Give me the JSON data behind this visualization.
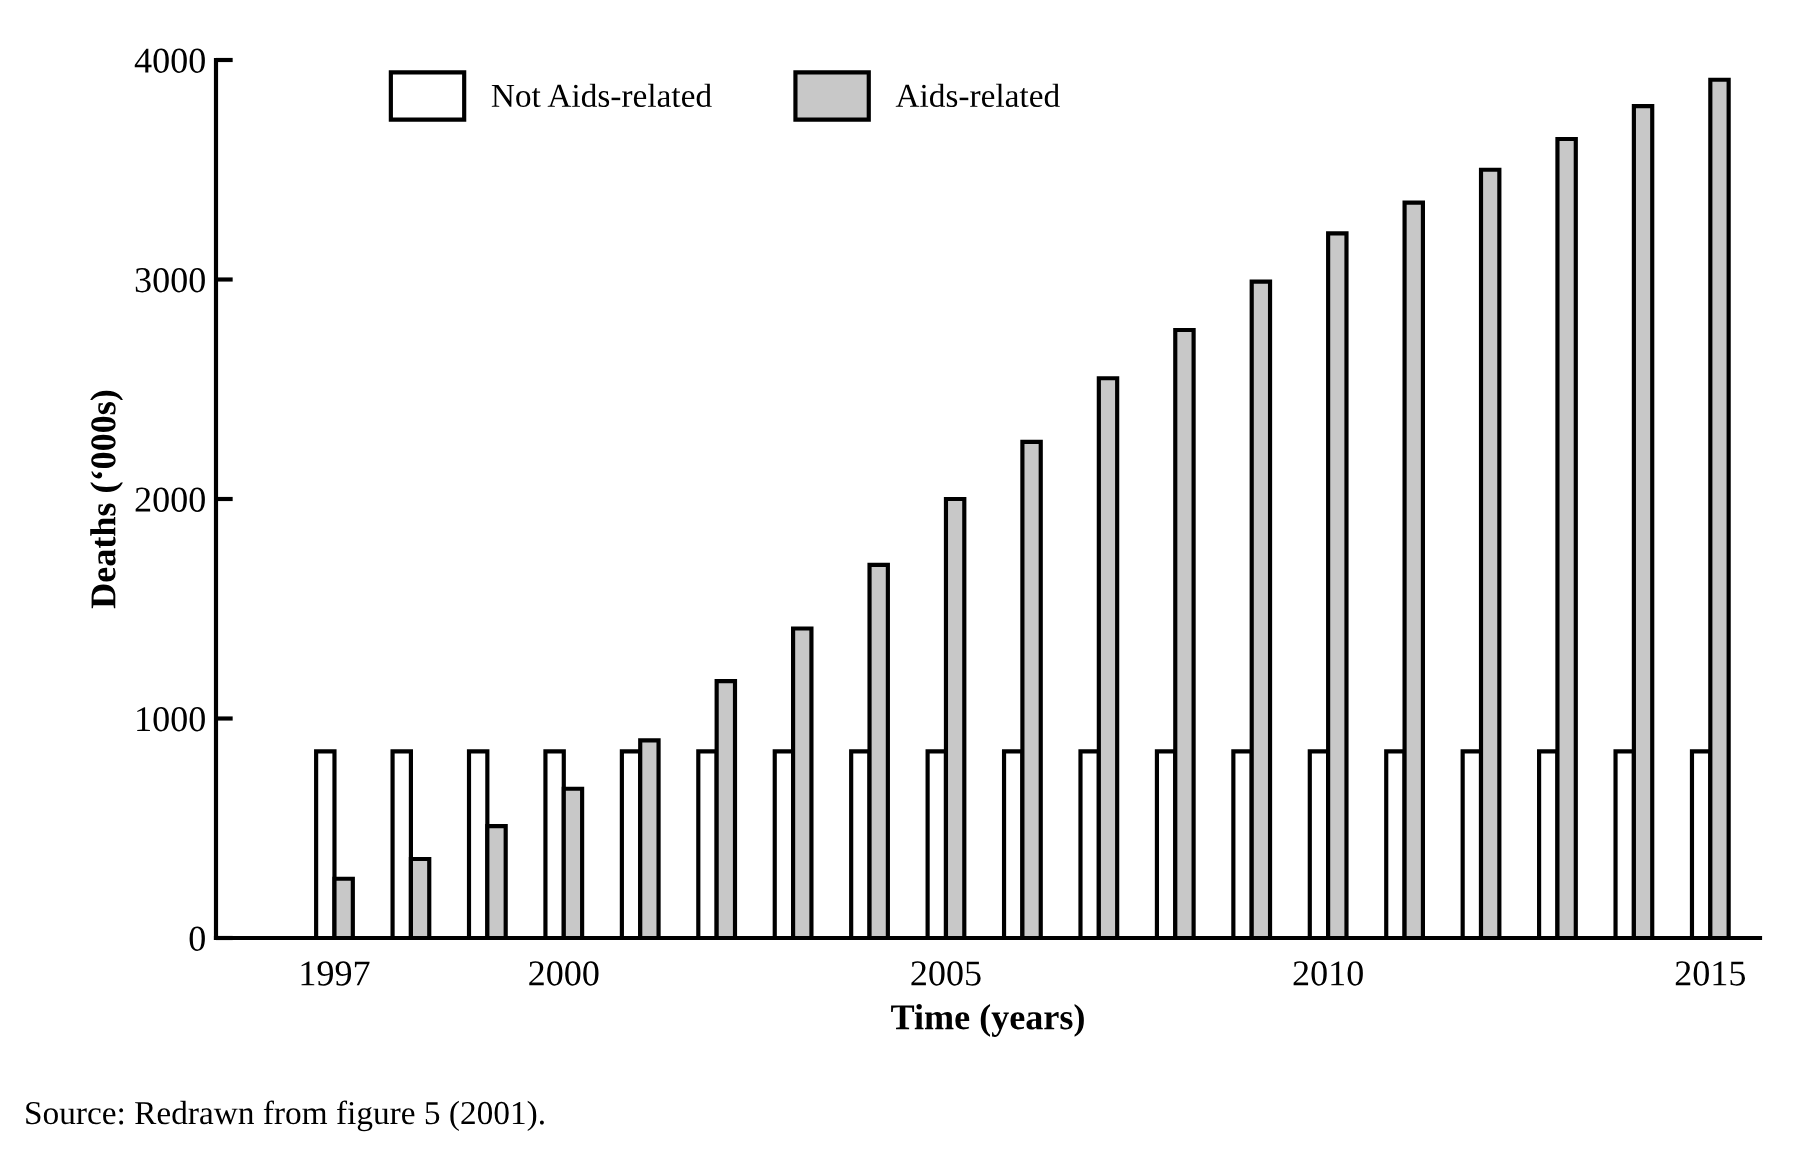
{
  "chart_data": {
    "type": "bar",
    "xlabel": "Time (years)",
    "ylabel": "Deaths (‘000s)",
    "x": [
      1997,
      1998,
      1999,
      2000,
      2001,
      2002,
      2003,
      2004,
      2005,
      2006,
      2007,
      2008,
      2009,
      2010,
      2011,
      2012,
      2013,
      2014,
      2015
    ],
    "series": [
      {
        "name": "Not Aids-related",
        "color": "#ffffff",
        "values": [
          850,
          850,
          850,
          850,
          850,
          850,
          850,
          850,
          850,
          850,
          850,
          850,
          850,
          850,
          850,
          850,
          850,
          850,
          850
        ]
      },
      {
        "name": "Aids-related",
        "color": "#c8c8c8",
        "values": [
          270,
          360,
          510,
          680,
          900,
          1170,
          1410,
          1700,
          2000,
          2260,
          2550,
          2770,
          2990,
          3210,
          3350,
          3500,
          3640,
          3790,
          3910
        ]
      }
    ],
    "xlim": [
      1995.45,
      2015.65
    ],
    "xticks": [
      1997,
      2000,
      2005,
      2010,
      2015
    ],
    "ylim": [
      0,
      4000
    ],
    "yticks": [
      0,
      1000,
      2000,
      3000,
      4000
    ],
    "grid": false,
    "legend": "top",
    "annotations": [
      "Source: Redrawn from figure 5 (2001)."
    ]
  }
}
